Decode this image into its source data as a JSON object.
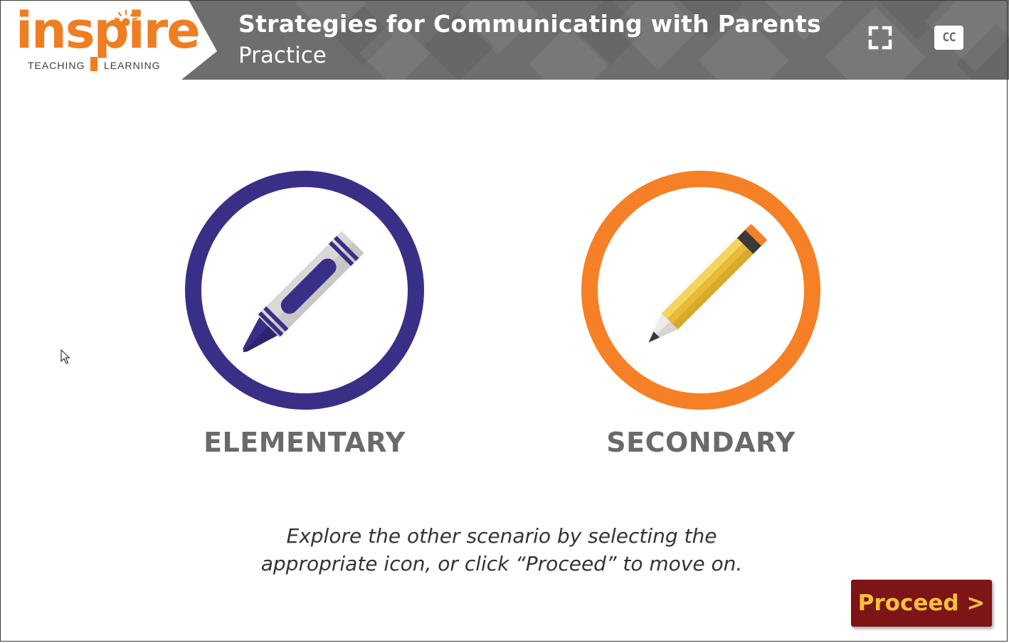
{
  "header": {
    "logo": {
      "word": "inspire",
      "left_word": "TEACHING",
      "right_word": "LEARNING",
      "color": "#ef7d22"
    },
    "title": "Strategies for Communicating with Parents",
    "subtitle": "Practice",
    "background": "#6e6e6e",
    "fullscreen_icon": "fullscreen-icon",
    "cc_label": "CC"
  },
  "options": [
    {
      "label": "ELEMENTARY",
      "icon": "crayon-icon",
      "ring_color": "#3a2f87"
    },
    {
      "label": "SECONDARY",
      "icon": "pencil-icon",
      "ring_color": "#f58025"
    }
  ],
  "instruction": {
    "line1": "Explore the other scenario by selecting the",
    "line2": "appropriate icon, or click “Proceed” to move on."
  },
  "proceed": {
    "label": "Proceed >",
    "background": "#7d1416",
    "text_color": "#f3c23c"
  }
}
